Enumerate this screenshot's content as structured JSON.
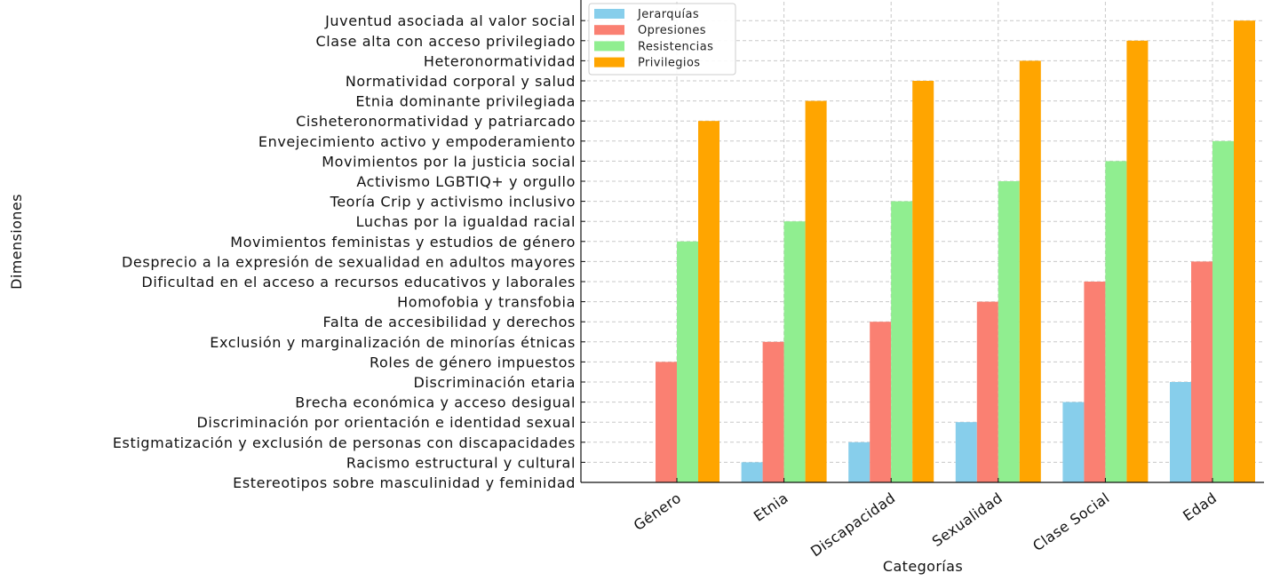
{
  "chart_data": {
    "type": "bar",
    "xlabel": "Categorías",
    "ylabel": "Dimensiones",
    "categories": [
      "Género",
      "Etnia",
      "Discapacidad",
      "Sexualidad",
      "Clase Social",
      "Edad"
    ],
    "y_ticks": [
      "Estereotipos sobre masculinidad y feminidad",
      "Racismo estructural y cultural",
      "Estigmatización y exclusión de personas con discapacidades",
      "Discriminación por orientación e identidad sexual",
      "Brecha económica y acceso desigual",
      "Discriminación etaria",
      "Roles de género impuestos",
      "Exclusión y marginalización de minorías étnicas",
      "Falta de accesibilidad y derechos",
      "Homofobia y transfobia",
      "Dificultad en el acceso a recursos educativos y laborales",
      "Desprecio a la expresión de sexualidad en adultos mayores",
      "Movimientos feministas y estudios de género",
      "Luchas por la igualdad racial",
      "Teoría Crip y activismo inclusivo",
      "Activismo LGBTIQ+ y orgullo",
      "Movimientos por la justicia social",
      "Envejecimiento activo y empoderamiento",
      "Cisheteronormatividad y patriarcado",
      "Etnia dominante privilegiada",
      "Normatividad corporal y salud",
      "Heteronormatividad",
      "Clase alta con acceso privilegiado",
      "Juventud asociada al valor social"
    ],
    "ylim": [
      0,
      23
    ],
    "grid": true,
    "legend_position": "top-left",
    "series": [
      {
        "name": "Jerarquías",
        "color": "#87CEEB",
        "values": [
          0,
          1,
          2,
          3,
          4,
          5
        ]
      },
      {
        "name": "Opresiones",
        "color": "#FA8072",
        "values": [
          6,
          7,
          8,
          9,
          10,
          11
        ]
      },
      {
        "name": "Resistencias",
        "color": "#90EE90",
        "values": [
          12,
          13,
          14,
          15,
          16,
          17
        ]
      },
      {
        "name": "Privilegios",
        "color": "#FFA500",
        "values": [
          18,
          19,
          20,
          21,
          22,
          23
        ]
      }
    ]
  }
}
